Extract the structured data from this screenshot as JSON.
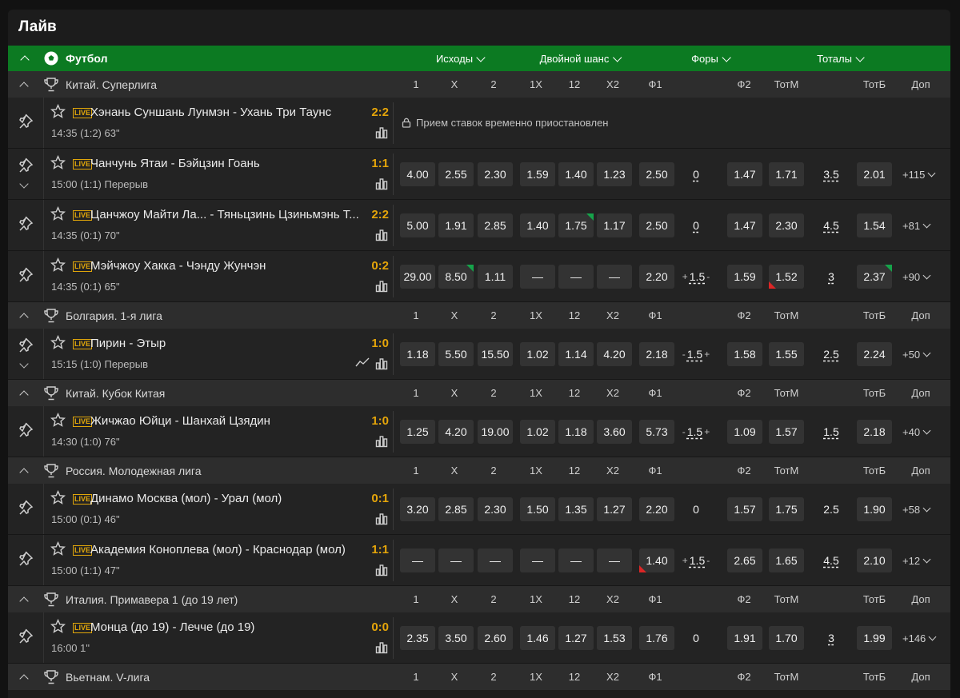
{
  "title": "Лайв",
  "sport": {
    "name": "Футбол",
    "markets": [
      {
        "label": "Исходы"
      },
      {
        "label": "Двойной шанс"
      },
      {
        "label": "Форы"
      },
      {
        "label": "Тоталы"
      }
    ]
  },
  "columns": [
    "1",
    "X",
    "2",
    "1X",
    "12",
    "X2",
    "Ф1",
    "Ф2",
    "ТотМ",
    "ТотБ",
    "Доп"
  ],
  "leagues": [
    {
      "name": "Китай. Суперлига",
      "matches": [
        {
          "teams": "Хэнань Суншань Лунмэн - Ухань Три Таунс",
          "time": "14:35   (1:2) 63\"",
          "score": "2:2",
          "suspended": "Прием ставок временно приостановлен",
          "expand": false,
          "trend": false
        },
        {
          "teams": "Чанчунь Ятаи - Бэйцзин Гоань",
          "time": "15:00   (1:1) Перерыв",
          "score": "1:1",
          "expand": true,
          "trend": false,
          "odds": [
            "4.00",
            "2.55",
            "2.30",
            "1.59",
            "1.40",
            "1.23",
            "2.50",
            "0",
            "1.47",
            "1.71",
            "3.5",
            "2.01"
          ],
          "more": "+115"
        },
        {
          "teams": "Цанчжоу Майти Ла... - Тяньцзинь Цзиньмэнь Т...",
          "time": "14:35   (0:1) 70\"",
          "score": "2:2",
          "expand": false,
          "trend": false,
          "odds": [
            "5.00",
            "1.91",
            "2.85",
            "1.40",
            "1.75",
            "1.17",
            "2.50",
            "0",
            "1.47",
            "2.30",
            "4.5",
            "1.54"
          ],
          "more": "+81",
          "up": [
            4
          ]
        },
        {
          "teams": "Мэйчжоу Хакка - Чэнду Жунчэн",
          "time": "14:35   (0:1) 65\"",
          "score": "0:2",
          "expand": false,
          "trend": false,
          "odds": [
            "29.00",
            "8.50",
            "1.11",
            "—",
            "—",
            "—",
            "2.20",
            "+1.5",
            "1.59",
            "1.52",
            "3",
            "2.37"
          ],
          "more": "+90",
          "up": [
            1,
            11
          ],
          "down": [
            9
          ],
          "pm": [
            7
          ]
        }
      ]
    },
    {
      "name": "Болгария. 1-я лига",
      "matches": [
        {
          "teams": "Пирин - Этыр",
          "time": "15:15   (1:0) Перерыв",
          "score": "1:0",
          "expand": true,
          "trend": true,
          "odds": [
            "1.18",
            "5.50",
            "15.50",
            "1.02",
            "1.14",
            "4.20",
            "2.18",
            "-1.5",
            "1.58",
            "1.55",
            "2.5",
            "2.24"
          ],
          "more": "+50",
          "pm": [
            7
          ]
        }
      ]
    },
    {
      "name": "Китай. Кубок Китая",
      "matches": [
        {
          "teams": "Жичжао Юйци - Шанхай Цзядин",
          "time": "14:30   (1:0) 76\"",
          "score": "1:0",
          "expand": false,
          "trend": false,
          "odds": [
            "1.25",
            "4.20",
            "19.00",
            "1.02",
            "1.18",
            "3.60",
            "5.73",
            "-1.5",
            "1.09",
            "1.57",
            "1.5",
            "2.18"
          ],
          "more": "+40",
          "pm": [
            7
          ]
        }
      ]
    },
    {
      "name": "Россия. Молодежная лига",
      "matches": [
        {
          "teams": "Динамо Москва (мол) - Урал (мол)",
          "time": "15:00   (0:1) 46\"",
          "score": "0:1",
          "expand": false,
          "trend": false,
          "odds": [
            "3.20",
            "2.85",
            "2.30",
            "1.50",
            "1.35",
            "1.27",
            "2.20",
            "0",
            "1.57",
            "1.75",
            "2.5",
            "1.90"
          ],
          "more": "+58",
          "plainParam": true
        },
        {
          "teams": "Академия Коноплева (мол) - Краснодар (мол)",
          "time": "15:00   (1:1) 47\"",
          "score": "1:1",
          "expand": false,
          "trend": false,
          "odds": [
            "—",
            "—",
            "—",
            "—",
            "—",
            "—",
            "1.40",
            "+1.5",
            "2.65",
            "1.65",
            "4.5",
            "2.10"
          ],
          "more": "+12",
          "down": [
            6
          ],
          "pm": [
            7
          ]
        }
      ]
    },
    {
      "name": "Италия. Примавера 1 (до 19 лет)",
      "matches": [
        {
          "teams": "Монца (до 19) - Лечче (до 19)",
          "time": "16:00   1\"",
          "score": "0:0",
          "expand": false,
          "trend": false,
          "odds": [
            "2.35",
            "3.50",
            "2.60",
            "1.46",
            "1.27",
            "1.53",
            "1.76",
            "0",
            "1.91",
            "1.70",
            "3",
            "1.99"
          ],
          "more": "+146",
          "plainH": true
        }
      ]
    },
    {
      "name": "Вьетнам. V-лига",
      "matches": []
    }
  ]
}
